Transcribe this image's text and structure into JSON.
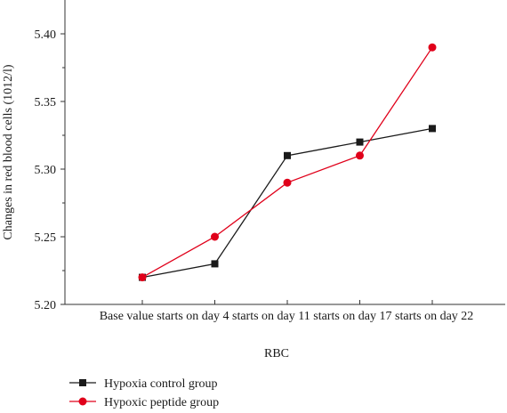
{
  "chart_data": {
    "type": "line",
    "title": "",
    "xlabel": "RBC",
    "ylabel": "Changes in red blood cells (1012/l)",
    "categories": [
      "Base value",
      "starts on day 4",
      "starts on day 11",
      "starts on day 17",
      "starts on day 22"
    ],
    "category_axis_text": "Base value starts on day 4 starts on day 11 starts on day 17 starts on day 22",
    "y_ticks": [
      "5.20",
      "5.25",
      "5.30",
      "5.35",
      "5.40"
    ],
    "ylim": [
      5.2,
      5.42
    ],
    "grid": false,
    "legend_position": "bottom-left",
    "series": [
      {
        "name": "Hypoxia control group",
        "marker": "square",
        "color": "#1a1a1a",
        "values": [
          5.22,
          5.23,
          5.31,
          5.32,
          5.33
        ]
      },
      {
        "name": "Hypoxic peptide group",
        "marker": "circle",
        "color": "#e0001a",
        "values": [
          5.22,
          5.25,
          5.29,
          5.31,
          5.39
        ]
      }
    ]
  }
}
